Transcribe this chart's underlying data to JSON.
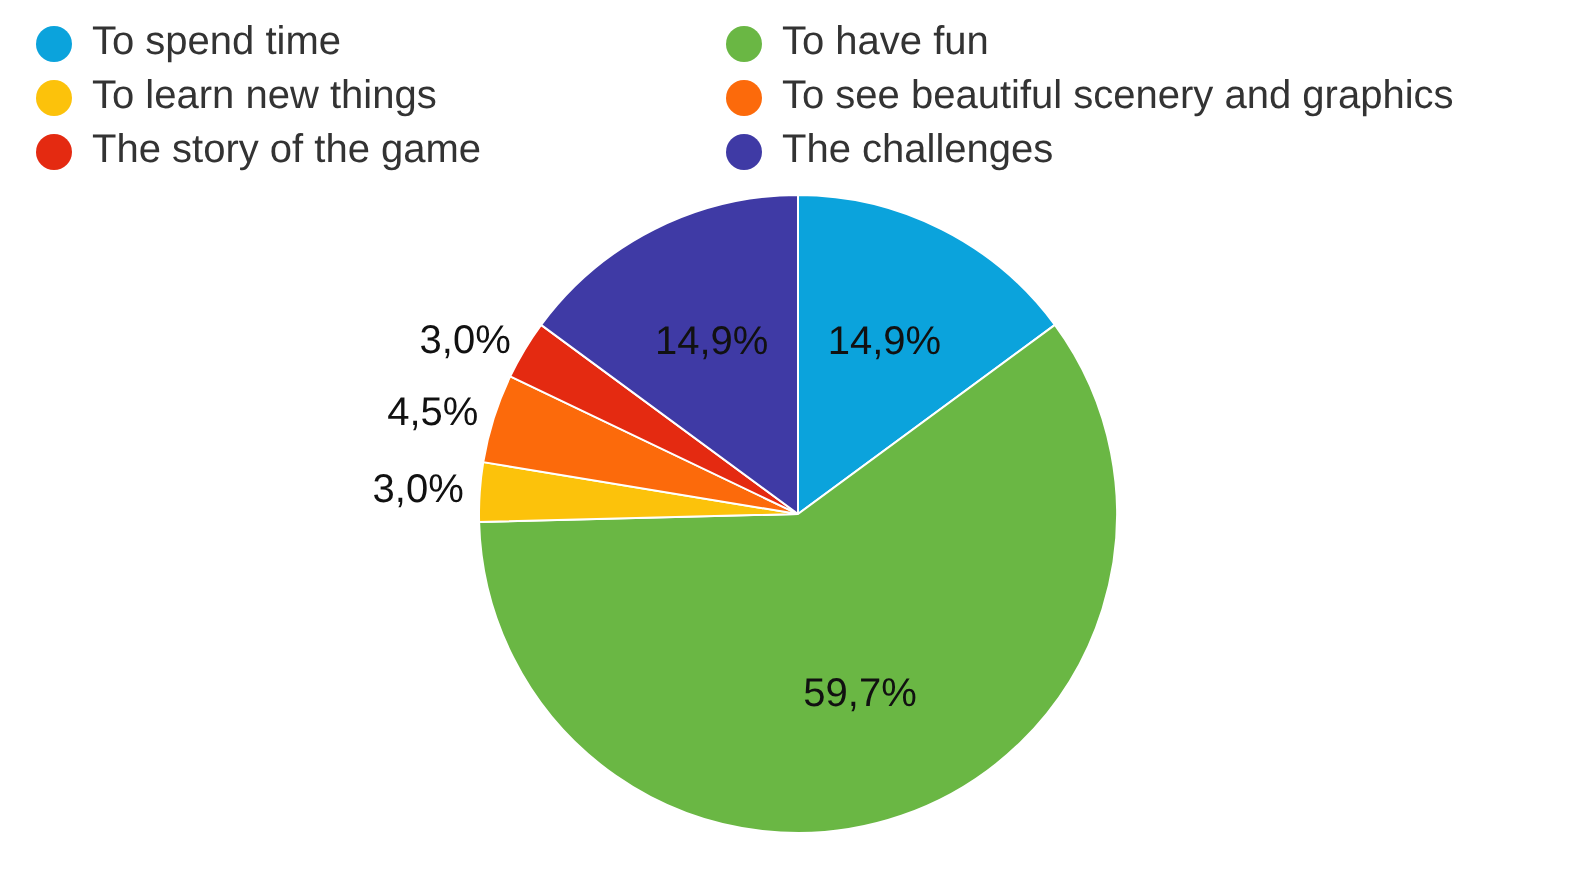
{
  "chart_data": {
    "type": "pie",
    "categories": [
      "To spend time",
      "To have fun",
      "To learn new things",
      "To see beautiful scenery and graphics",
      "The story of the game",
      "The challenges"
    ],
    "values": [
      14.9,
      59.7,
      3.0,
      4.5,
      3.0,
      14.9
    ],
    "colors": [
      "#0ba3dc",
      "#6ab744",
      "#fcc20b",
      "#fc6a0b",
      "#e42a11",
      "#3f3aa5"
    ],
    "value_labels": [
      "14,9%",
      "59,7%",
      "3,0%",
      "4,5%",
      "3,0%",
      "14,9%"
    ],
    "legend": "top"
  }
}
